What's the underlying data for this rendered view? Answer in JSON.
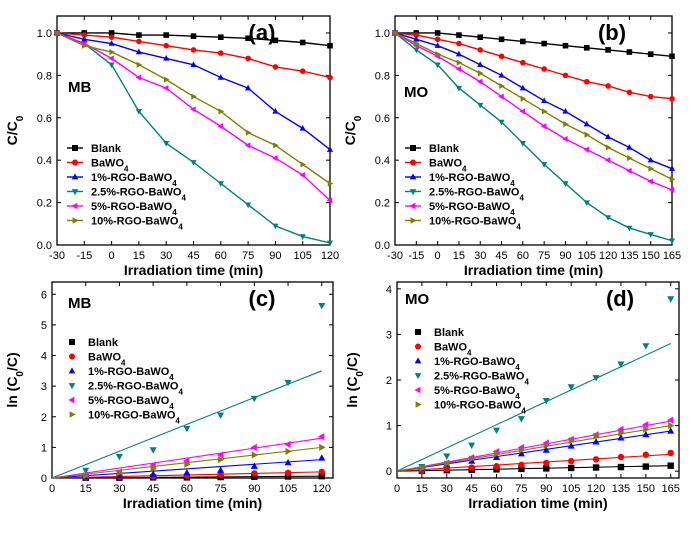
{
  "figure": {
    "series_names": [
      "Blank",
      "BaWO4",
      "1%-RGO-BaWO4",
      "2.5%-RGO-BaWO4",
      "5%-RGO-BaWO4",
      "10%-RGO-BaWO4"
    ],
    "series_colors": [
      "#000000",
      "#ff0000",
      "#0000ff",
      "#008080",
      "#ff00ff",
      "#808000"
    ],
    "series_markers": [
      "square",
      "circle",
      "triangle-up",
      "triangle-down",
      "triangle-left",
      "triangle-right"
    ]
  },
  "chart_data": [
    {
      "type": "line",
      "panel_label": "(a)",
      "tag": "MB",
      "xlabel": "Irradiation time (min)",
      "ylabel": "C/C0",
      "xlim": [
        -30,
        120
      ],
      "ylim": [
        0,
        1.08
      ],
      "xticks": [
        -30,
        -15,
        0,
        15,
        30,
        45,
        60,
        75,
        90,
        105,
        120
      ],
      "yticks": [
        0.0,
        0.2,
        0.4,
        0.6,
        0.8,
        1.0
      ],
      "ytick_labels": [
        "0.0",
        "0.2",
        "0.4",
        "0.6",
        "0.8",
        "1.0"
      ],
      "x": [
        -30,
        -15,
        0,
        15,
        30,
        45,
        60,
        75,
        90,
        105,
        120
      ],
      "series": [
        {
          "name": "Blank",
          "values": [
            1.0,
            1.0,
            1.0,
            0.99,
            0.99,
            0.985,
            0.98,
            0.975,
            0.965,
            0.955,
            0.94
          ]
        },
        {
          "name": "BaWO4",
          "values": [
            1.0,
            0.99,
            0.98,
            0.96,
            0.94,
            0.92,
            0.905,
            0.88,
            0.84,
            0.82,
            0.79
          ]
        },
        {
          "name": "1%-RGO-BaWO4",
          "values": [
            1.0,
            0.97,
            0.95,
            0.91,
            0.88,
            0.85,
            0.79,
            0.74,
            0.63,
            0.55,
            0.45
          ]
        },
        {
          "name": "2.5%-RGO-BaWO4",
          "values": [
            1.0,
            0.95,
            0.85,
            0.63,
            0.48,
            0.39,
            0.29,
            0.19,
            0.09,
            0.04,
            0.01
          ]
        },
        {
          "name": "5%-RGO-BaWO4",
          "values": [
            1.0,
            0.95,
            0.88,
            0.79,
            0.74,
            0.64,
            0.56,
            0.47,
            0.41,
            0.33,
            0.21
          ]
        },
        {
          "name": "10%-RGO-BaWO4",
          "values": [
            1.0,
            0.94,
            0.91,
            0.85,
            0.78,
            0.7,
            0.63,
            0.53,
            0.47,
            0.38,
            0.29
          ]
        }
      ],
      "legend": "bottom-left"
    },
    {
      "type": "line",
      "panel_label": "(b)",
      "tag": "MO",
      "xlabel": "Irradiation time (min)",
      "ylabel": "C/C0",
      "xlim": [
        -30,
        165
      ],
      "ylim": [
        0,
        1.08
      ],
      "xticks": [
        -30,
        -15,
        0,
        15,
        30,
        45,
        60,
        75,
        90,
        105,
        120,
        135,
        150,
        165
      ],
      "yticks": [
        0.0,
        0.2,
        0.4,
        0.6,
        0.8,
        1.0
      ],
      "ytick_labels": [
        "0.0",
        "0.2",
        "0.4",
        "0.6",
        "0.8",
        "1.0"
      ],
      "x": [
        -30,
        -15,
        0,
        15,
        30,
        45,
        60,
        75,
        90,
        105,
        120,
        135,
        150,
        165
      ],
      "series": [
        {
          "name": "Blank",
          "values": [
            1.0,
            1.0,
            1.0,
            0.99,
            0.98,
            0.97,
            0.96,
            0.95,
            0.94,
            0.93,
            0.92,
            0.91,
            0.9,
            0.89
          ]
        },
        {
          "name": "BaWO4",
          "values": [
            1.0,
            0.99,
            0.97,
            0.95,
            0.92,
            0.89,
            0.86,
            0.83,
            0.8,
            0.77,
            0.75,
            0.72,
            0.7,
            0.69
          ]
        },
        {
          "name": "1%-RGO-BaWO4",
          "values": [
            1.0,
            0.97,
            0.94,
            0.9,
            0.85,
            0.8,
            0.74,
            0.68,
            0.63,
            0.57,
            0.51,
            0.46,
            0.4,
            0.36
          ]
        },
        {
          "name": "2.5%-RGO-BaWO4",
          "values": [
            1.0,
            0.92,
            0.85,
            0.74,
            0.66,
            0.58,
            0.48,
            0.38,
            0.29,
            0.2,
            0.13,
            0.08,
            0.05,
            0.02
          ]
        },
        {
          "name": "5%-RGO-BaWO4",
          "values": [
            1.0,
            0.94,
            0.89,
            0.83,
            0.77,
            0.7,
            0.63,
            0.56,
            0.5,
            0.45,
            0.4,
            0.35,
            0.3,
            0.26
          ]
        },
        {
          "name": "10%-RGO-BaWO4",
          "values": [
            1.0,
            0.95,
            0.9,
            0.86,
            0.81,
            0.75,
            0.69,
            0.63,
            0.57,
            0.52,
            0.46,
            0.41,
            0.36,
            0.31
          ]
        }
      ],
      "legend": "bottom-left"
    },
    {
      "type": "scatter",
      "panel_label": "(c)",
      "tag": "MB",
      "xlabel": "Irradiation time (min)",
      "ylabel": "ln (C0/C)",
      "xlim": [
        0,
        125
      ],
      "ylim": [
        0,
        6.4
      ],
      "xticks": [
        0,
        15,
        30,
        45,
        60,
        75,
        90,
        105,
        120
      ],
      "yticks": [
        0,
        1,
        2,
        3,
        4,
        5,
        6
      ],
      "ytick_labels": [
        "0",
        "1",
        "2",
        "3",
        "4",
        "5",
        "6"
      ],
      "x": [
        15,
        30,
        45,
        60,
        75,
        90,
        105,
        120
      ],
      "fit": "linear through origin",
      "series": [
        {
          "name": "Blank",
          "values": [
            0.01,
            0.01,
            0.02,
            0.02,
            0.03,
            0.04,
            0.05,
            0.06
          ],
          "fit_end": 0.06
        },
        {
          "name": "BaWO4",
          "values": [
            0.02,
            0.04,
            0.06,
            0.08,
            0.11,
            0.15,
            0.17,
            0.2
          ],
          "fit_end": 0.2
        },
        {
          "name": "1%-RGO-BaWO4",
          "values": [
            0.04,
            0.07,
            0.12,
            0.17,
            0.25,
            0.38,
            0.5,
            0.65
          ],
          "fit_end": 0.6
        },
        {
          "name": "2.5%-RGO-BaWO4",
          "values": [
            0.25,
            0.7,
            0.92,
            1.62,
            2.05,
            2.6,
            3.12,
            5.63
          ],
          "fit_end": 3.5
        },
        {
          "name": "5%-RGO-BaWO4",
          "values": [
            0.1,
            0.2,
            0.42,
            0.55,
            0.75,
            1.0,
            1.1,
            1.35
          ],
          "fit_end": 1.3
        },
        {
          "name": "10%-RGO-BaWO4",
          "values": [
            0.07,
            0.17,
            0.3,
            0.45,
            0.6,
            0.75,
            0.87,
            1.0
          ],
          "fit_end": 1.0
        }
      ],
      "legend": "middle-left"
    },
    {
      "type": "scatter",
      "panel_label": "(d)",
      "tag": "MO",
      "xlabel": "Irradiation time (min)",
      "ylabel": "ln (C0/C)",
      "xlim": [
        0,
        170
      ],
      "ylim": [
        -0.15,
        4.15
      ],
      "xticks": [
        0,
        15,
        30,
        45,
        60,
        75,
        90,
        105,
        120,
        135,
        150,
        165
      ],
      "yticks": [
        0,
        1,
        2,
        3,
        4
      ],
      "ytick_labels": [
        "0",
        "1",
        "2",
        "3",
        "4"
      ],
      "x": [
        15,
        30,
        45,
        60,
        75,
        90,
        105,
        120,
        135,
        150,
        165
      ],
      "fit": "linear through origin",
      "series": [
        {
          "name": "Blank",
          "values": [
            0.01,
            0.02,
            0.03,
            0.04,
            0.05,
            0.06,
            0.07,
            0.08,
            0.09,
            0.1,
            0.12
          ],
          "fit_end": 0.12
        },
        {
          "name": "BaWO4",
          "values": [
            0.02,
            0.05,
            0.08,
            0.11,
            0.14,
            0.18,
            0.22,
            0.26,
            0.31,
            0.36,
            0.4
          ],
          "fit_end": 0.37
        },
        {
          "name": "1%-RGO-BaWO4",
          "values": [
            0.06,
            0.15,
            0.22,
            0.3,
            0.38,
            0.46,
            0.55,
            0.64,
            0.73,
            0.8,
            0.88
          ],
          "fit_end": 0.88
        },
        {
          "name": "2.5%-RGO-BaWO4",
          "values": [
            0.1,
            0.33,
            0.57,
            0.9,
            1.15,
            1.55,
            1.85,
            2.05,
            2.35,
            2.75,
            3.78
          ],
          "fit_end": 2.8
        },
        {
          "name": "5%-RGO-BaWO4",
          "values": [
            0.08,
            0.18,
            0.3,
            0.43,
            0.52,
            0.62,
            0.7,
            0.8,
            0.92,
            1.02,
            1.12
          ],
          "fit_end": 1.1
        },
        {
          "name": "10%-RGO-BaWO4",
          "values": [
            0.06,
            0.16,
            0.27,
            0.38,
            0.46,
            0.56,
            0.67,
            0.77,
            0.84,
            0.92,
            1.0
          ],
          "fit_end": 1.0
        }
      ],
      "legend": "top-left"
    }
  ]
}
